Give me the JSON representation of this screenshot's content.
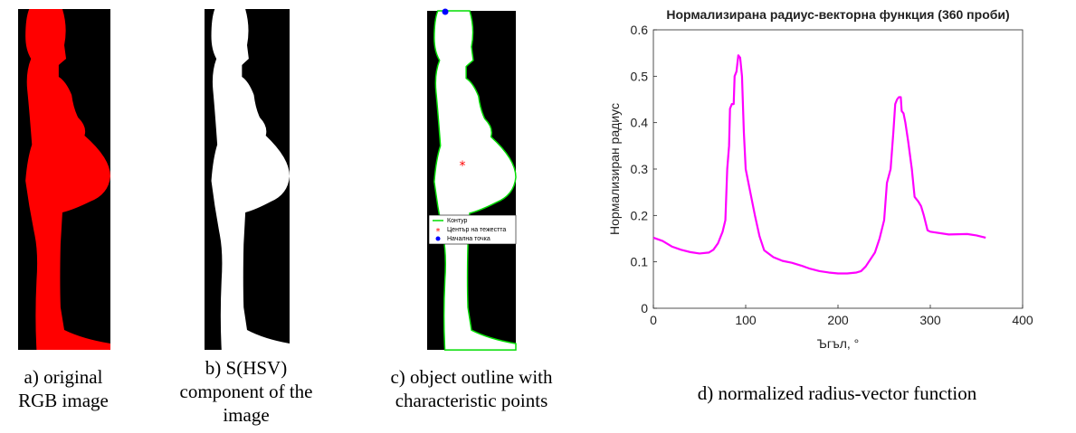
{
  "panels": [
    {
      "caption": [
        "a) original",
        "RGB image"
      ]
    },
    {
      "caption": [
        "b) S(HSV)",
        "component of the",
        "image"
      ]
    },
    {
      "caption": [
        "c) object outline with",
        "characteristic points"
      ],
      "legend": [
        "Контур",
        "Център на тежестта",
        "Начална точка"
      ]
    },
    {
      "caption": [
        "d) normalized radius-vector function"
      ]
    }
  ],
  "chart_data": {
    "type": "line",
    "title": "Нормализирана радиус-векторна функция (360 проби)",
    "xlabel": "Ъгъл, °",
    "ylabel": "Нормализиран радиус",
    "color": "#ff00ff",
    "grid": false,
    "xlim": [
      0,
      400
    ],
    "xticks": [
      0,
      100,
      200,
      300,
      400
    ],
    "ylim": [
      0,
      0.6
    ],
    "yticks": [
      0,
      0.1,
      0.2,
      0.3,
      0.4,
      0.5,
      0.6
    ],
    "x": [
      0,
      10,
      20,
      30,
      40,
      50,
      60,
      65,
      70,
      75,
      78,
      80,
      82,
      83,
      85,
      87,
      88,
      90,
      92,
      94,
      96,
      98,
      100,
      105,
      110,
      115,
      120,
      130,
      140,
      150,
      160,
      170,
      180,
      190,
      200,
      210,
      220,
      225,
      230,
      240,
      245,
      250,
      253,
      257,
      260,
      262,
      264,
      266,
      268,
      269,
      271,
      273,
      276,
      280,
      283,
      287,
      290,
      293,
      297,
      300,
      320,
      340,
      350,
      360
    ],
    "values": [
      0.152,
      0.145,
      0.133,
      0.126,
      0.121,
      0.118,
      0.12,
      0.126,
      0.14,
      0.165,
      0.19,
      0.3,
      0.35,
      0.43,
      0.44,
      0.44,
      0.5,
      0.51,
      0.545,
      0.54,
      0.5,
      0.38,
      0.3,
      0.25,
      0.2,
      0.155,
      0.125,
      0.11,
      0.102,
      0.098,
      0.092,
      0.085,
      0.08,
      0.077,
      0.075,
      0.075,
      0.077,
      0.08,
      0.09,
      0.12,
      0.15,
      0.19,
      0.27,
      0.3,
      0.38,
      0.44,
      0.45,
      0.455,
      0.455,
      0.425,
      0.42,
      0.4,
      0.36,
      0.3,
      0.24,
      0.23,
      0.22,
      0.2,
      0.168,
      0.165,
      0.159,
      0.16,
      0.157,
      0.152
    ]
  }
}
